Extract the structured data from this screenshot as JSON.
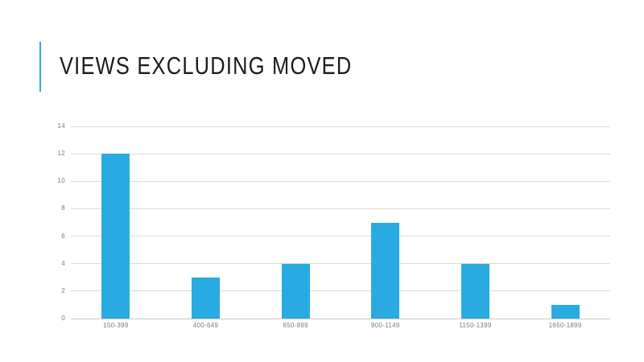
{
  "slide": {
    "title": "VIEWS EXCLUDING MOVED"
  },
  "chart_data": {
    "type": "bar",
    "title": "Views Excluding Moved",
    "categories": [
      "150-399",
      "400-649",
      "650-899",
      "900-1149",
      "1150-1399",
      "1650-1899"
    ],
    "values": [
      12,
      3,
      4,
      7,
      4,
      1
    ],
    "xlabel": "",
    "ylabel": "",
    "ylim": [
      0,
      14
    ],
    "ytick_step": 2,
    "yticks": [
      0,
      2,
      4,
      6,
      8,
      10,
      12,
      14
    ],
    "grid": true,
    "legend": false,
    "bar_color": "#29ABE2"
  },
  "colors": {
    "accent": "#29ABE2",
    "bar": "#29ABE2",
    "gridline": "#DCDCDC",
    "axis_line": "#C8C8C8",
    "tick_label": "#7C7A74",
    "title_text": "#1A1A1A",
    "background": "#FFFFFF"
  }
}
